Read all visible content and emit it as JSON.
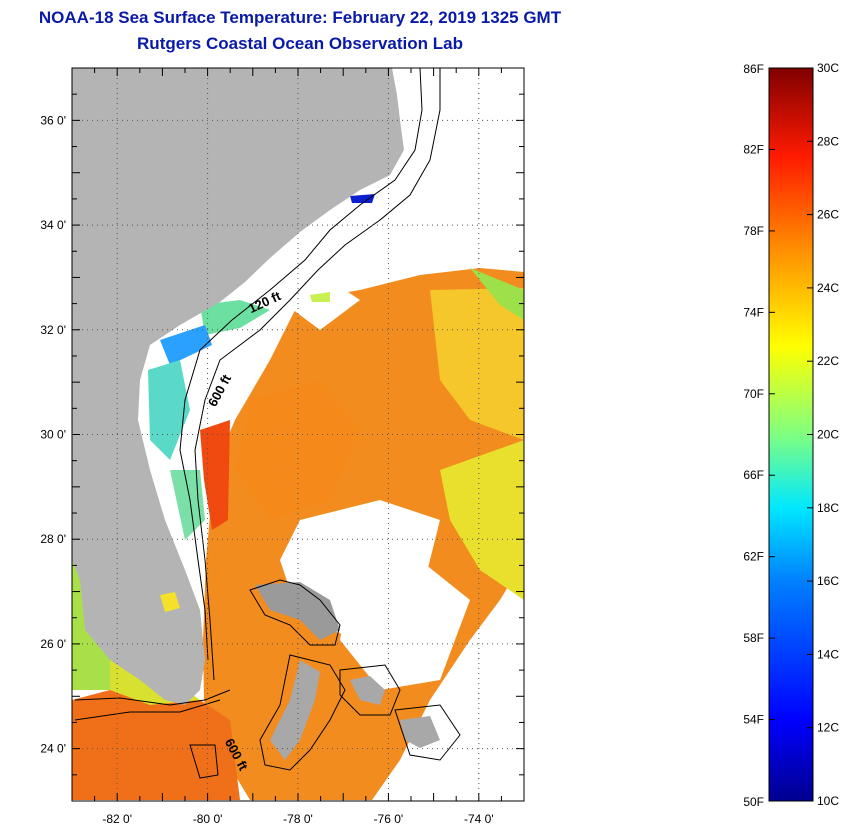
{
  "header": {
    "title": "NOAA-18 Sea Surface Temperature:  February 22, 2019 1325 GMT",
    "subtitle": "Rutgers Coastal Ocean Observation Lab"
  },
  "map": {
    "lon_range": [
      -83,
      -73
    ],
    "lat_range": [
      23,
      37
    ],
    "lon_ticks": [
      {
        "value": -82,
        "label": "-82 0'"
      },
      {
        "value": -80,
        "label": "-80 0'"
      },
      {
        "value": -78,
        "label": "-78 0'"
      },
      {
        "value": -76,
        "label": "-76 0'"
      },
      {
        "value": -74,
        "label": "-74 0'"
      }
    ],
    "lat_ticks": [
      {
        "value": 36,
        "label": "36 0'"
      },
      {
        "value": 34,
        "label": "34 0'"
      },
      {
        "value": 32,
        "label": "32 0'"
      },
      {
        "value": 30,
        "label": "30 0'"
      },
      {
        "value": 28,
        "label": "28 0'"
      },
      {
        "value": 26,
        "label": "26 0'"
      },
      {
        "value": 24,
        "label": "24 0'"
      }
    ],
    "contour_labels": [
      {
        "text": "120 ft",
        "lon": -78.7,
        "lat": 32.45
      },
      {
        "text": "600 ft",
        "lon": -79.65,
        "lat": 30.8
      },
      {
        "text": "600 ft",
        "lon": -79.45,
        "lat": 23.85
      }
    ],
    "colors": {
      "land": "#b4b4b4",
      "gridline": "#555555",
      "frame": "#000000",
      "title": "#0a1aa8"
    }
  },
  "colorbar": {
    "fahrenheit_labels": [
      "86F",
      "82F",
      "78F",
      "74F",
      "70F",
      "66F",
      "62F",
      "58F",
      "54F",
      "50F"
    ],
    "celsius_labels": [
      "30C",
      "28C",
      "26C",
      "24C",
      "22C",
      "20C",
      "18C",
      "16C",
      "14C",
      "12C",
      "10C"
    ],
    "range_f": [
      50,
      86
    ],
    "range_c": [
      10,
      30
    ],
    "colors": [
      "#00008f",
      "#0000ff",
      "#0080ff",
      "#00ffff",
      "#80ff80",
      "#ffff00",
      "#ff8000",
      "#ff0000",
      "#800000"
    ]
  }
}
